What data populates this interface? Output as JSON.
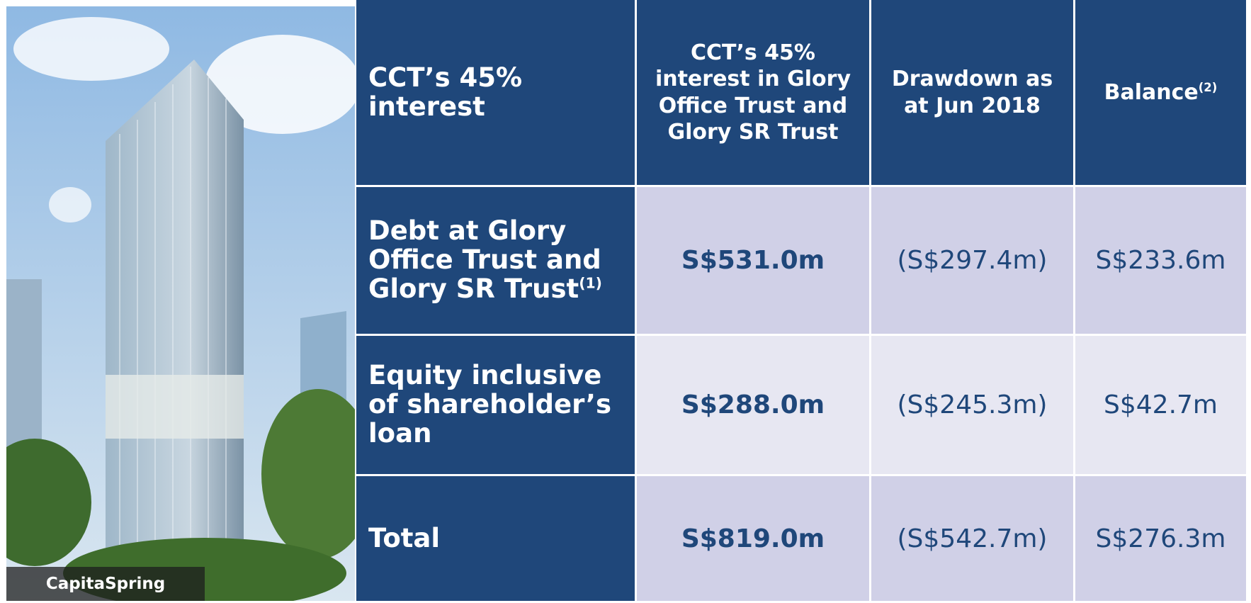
{
  "photo": {
    "caption": "CapitaSpring"
  },
  "table": {
    "header": [
      {
        "text": "CCT’s 45% interest"
      },
      {
        "text": "CCT’s 45% interest in Glory Office Trust and Glory SR Trust"
      },
      {
        "text": "Drawdown as at Jun 2018"
      },
      {
        "text": "Balance",
        "note": "(2)"
      }
    ],
    "rows": [
      {
        "label": {
          "text": "Debt at Glory Office Trust and Glory SR Trust",
          "note": "(1)"
        },
        "cells": [
          "S$531.0m",
          "(S$297.4m)",
          "S$233.6m"
        ]
      },
      {
        "label": {
          "text": "Equity inclusive of shareholder’s loan"
        },
        "cells": [
          "S$288.0m",
          "(S$245.3m)",
          "S$42.7m"
        ]
      },
      {
        "label": {
          "text": "Total"
        },
        "cells": [
          "S$819.0m",
          "(S$542.7m)",
          "S$276.3m"
        ]
      }
    ]
  }
}
